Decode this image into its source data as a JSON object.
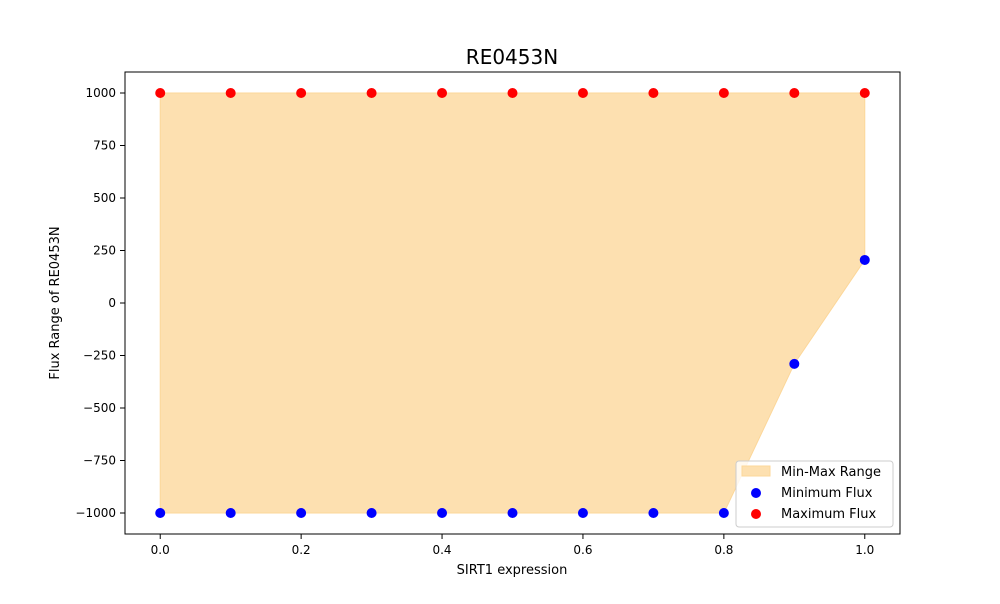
{
  "chart_data": {
    "type": "scatter",
    "title": "RE0453N",
    "xlabel": "SIRT1 expression",
    "ylabel": "Flux Range of RE0453N",
    "xlim": [
      -0.05,
      1.05
    ],
    "ylim": [
      -1100,
      1100
    ],
    "xticks": [
      0.0,
      0.2,
      0.4,
      0.6,
      0.8,
      1.0
    ],
    "xtick_labels": [
      "0.0",
      "0.2",
      "0.4",
      "0.6",
      "0.8",
      "1.0"
    ],
    "yticks": [
      -1000,
      -750,
      -500,
      -250,
      0,
      250,
      500,
      750,
      1000
    ],
    "ytick_labels": [
      "−1000",
      "−750",
      "−500",
      "−250",
      "0",
      "250",
      "500",
      "750",
      "1000"
    ],
    "grid": false,
    "legend": {
      "placement": "bottom-right",
      "entries": [
        {
          "label": "Min-Max Range",
          "kind": "area",
          "color": "#fde0b0",
          "edge": "#fcd79a"
        },
        {
          "label": "Minimum Flux",
          "kind": "point",
          "color": "#0000ff"
        },
        {
          "label": "Maximum Flux",
          "kind": "point",
          "color": "#ff0000"
        }
      ]
    },
    "x": [
      0.0,
      0.1,
      0.2,
      0.3,
      0.4,
      0.5,
      0.6,
      0.7,
      0.8,
      0.9,
      1.0
    ],
    "series": [
      {
        "name": "Minimum Flux",
        "color": "#0000ff",
        "values": [
          -1000,
          -1000,
          -1000,
          -1000,
          -1000,
          -1000,
          -1000,
          -1000,
          -1000,
          -290,
          205
        ]
      },
      {
        "name": "Maximum Flux",
        "color": "#ff0000",
        "values": [
          1000,
          1000,
          1000,
          1000,
          1000,
          1000,
          1000,
          1000,
          1000,
          1000,
          1000
        ]
      }
    ],
    "fill": {
      "name": "Min-Max Range",
      "color": "#fde0b0",
      "between": [
        "Minimum Flux",
        "Maximum Flux"
      ]
    }
  }
}
